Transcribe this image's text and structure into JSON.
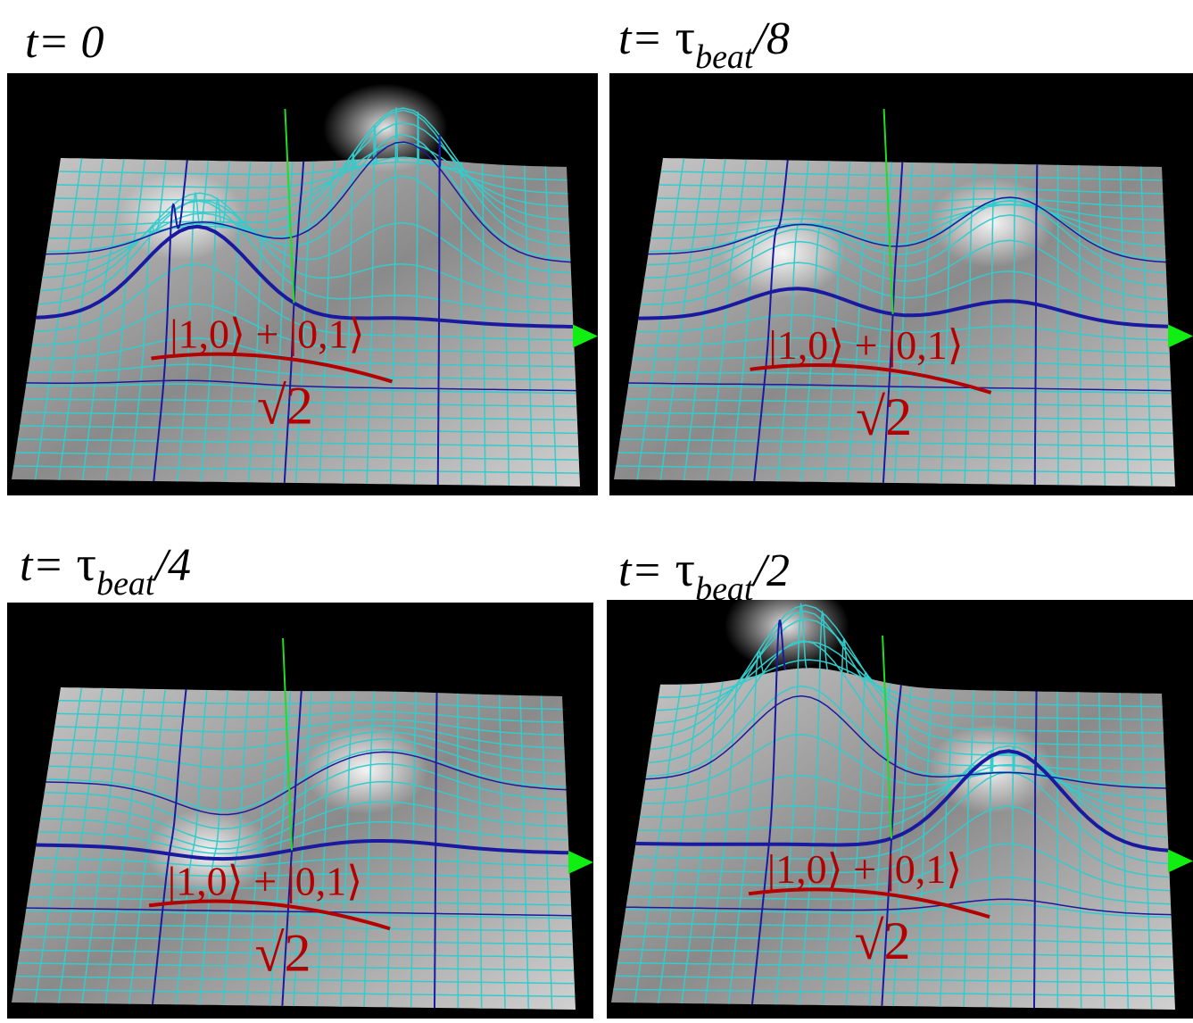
{
  "panels": [
    {
      "label": {
        "prefix": "t=",
        "time": "0"
      },
      "formula": {
        "numerator": "|1,0⟩ + |0,1⟩",
        "denominator": "√2"
      }
    },
    {
      "label": {
        "prefix": "t=",
        "symbol": "τ",
        "subscript": "beat",
        "suffix": "/8"
      },
      "formula": {
        "numerator": "|1,0⟩ + |0,1⟩",
        "denominator": "√2"
      }
    },
    {
      "label": {
        "prefix": "t=",
        "symbol": "τ",
        "subscript": "beat",
        "suffix": "/4"
      },
      "formula": {
        "numerator": "|1,0⟩ + |0,1⟩",
        "denominator": "√2"
      }
    },
    {
      "label": {
        "prefix": "t=",
        "symbol": "τ",
        "subscript": "beat",
        "suffix": "/2"
      },
      "formula": {
        "numerator": "|1,0⟩ + |0,1⟩",
        "denominator": "√2"
      }
    }
  ]
}
